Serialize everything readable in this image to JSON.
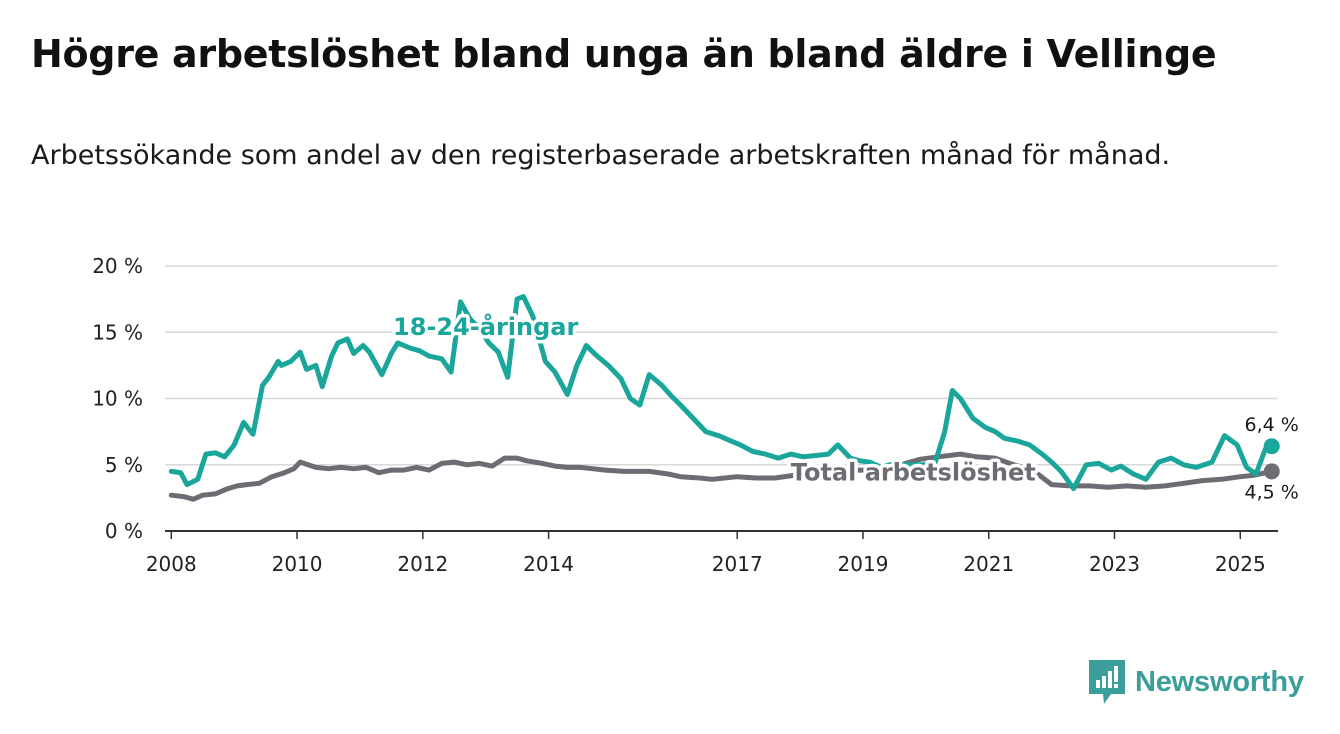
{
  "chart_data": {
    "type": "line",
    "title": "Högre arbetslöshet bland unga än bland äldre i Vellinge",
    "subtitle": "Arbetssökande som andel av den registerbaserade arbetskraften månad för månad.",
    "xlabel": "",
    "ylabel": "",
    "ylim": [
      0,
      20
    ],
    "xlim": [
      2007.9,
      2025.6
    ],
    "y_ticks": [
      0,
      5,
      10,
      15,
      20
    ],
    "y_tick_labels": [
      "0 %",
      "5 %",
      "10 %",
      "15 %",
      "20 %"
    ],
    "x_ticks": [
      2008,
      2010,
      2012,
      2014,
      2017,
      2019,
      2021,
      2023,
      2025
    ],
    "x_tick_labels": [
      "2008",
      "2010",
      "2012",
      "2014",
      "2017",
      "2019",
      "2021",
      "2023",
      "2025"
    ],
    "grid": true,
    "series": [
      {
        "name": "18-24-åringar",
        "color": "#1aa69b",
        "end_label": "6,4 %",
        "x": [
          2008.0,
          2008.15,
          2008.25,
          2008.42,
          2008.55,
          2008.7,
          2008.85,
          2009.0,
          2009.15,
          2009.3,
          2009.45,
          2009.55,
          2009.7,
          2009.75,
          2009.9,
          2010.05,
          2010.15,
          2010.3,
          2010.4,
          2010.55,
          2010.65,
          2010.8,
          2010.9,
          2011.05,
          2011.15,
          2011.35,
          2011.5,
          2011.6,
          2011.8,
          2011.95,
          2012.1,
          2012.3,
          2012.45,
          2012.6,
          2012.75,
          2012.9,
          2013.05,
          2013.2,
          2013.35,
          2013.5,
          2013.6,
          2013.75,
          2013.95,
          2014.1,
          2014.3,
          2014.45,
          2014.6,
          2014.75,
          2014.95,
          2015.15,
          2015.3,
          2015.45,
          2015.6,
          2015.8,
          2015.95,
          2016.1,
          2016.3,
          2016.5,
          2016.7,
          2016.9,
          2017.05,
          2017.25,
          2017.45,
          2017.65,
          2017.85,
          2018.05,
          2018.25,
          2018.45,
          2018.6,
          2018.8,
          2018.95,
          2019.1,
          2019.3,
          2019.5,
          2019.7,
          2019.95,
          2020.15,
          2020.3,
          2020.42,
          2020.55,
          2020.75,
          2020.95,
          2021.1,
          2021.25,
          2021.45,
          2021.65,
          2021.85,
          2022.0,
          2022.15,
          2022.35,
          2022.55,
          2022.75,
          2022.95,
          2023.1,
          2023.3,
          2023.5,
          2023.7,
          2023.9,
          2024.1,
          2024.3,
          2024.55,
          2024.75,
          2024.95,
          2025.1,
          2025.25,
          2025.4,
          2025.5
        ],
        "values": [
          4.5,
          4.4,
          3.5,
          3.9,
          5.8,
          5.9,
          5.6,
          6.5,
          8.2,
          7.3,
          11.0,
          11.6,
          12.8,
          12.5,
          12.8,
          13.5,
          12.2,
          12.5,
          10.9,
          13.2,
          14.2,
          14.5,
          13.4,
          14.0,
          13.5,
          11.8,
          13.4,
          14.2,
          13.8,
          13.6,
          13.2,
          13.0,
          12.0,
          17.3,
          16.0,
          15.3,
          14.2,
          13.5,
          11.6,
          17.5,
          17.7,
          16.2,
          12.8,
          12.0,
          10.3,
          12.5,
          14.0,
          13.3,
          12.5,
          11.5,
          10.0,
          9.5,
          11.8,
          11.0,
          10.2,
          9.5,
          8.5,
          7.5,
          7.2,
          6.8,
          6.5,
          6.0,
          5.8,
          5.5,
          5.8,
          5.6,
          5.7,
          5.8,
          6.5,
          5.5,
          5.3,
          5.2,
          4.8,
          5.1,
          5.0,
          5.0,
          5.2,
          7.5,
          10.6,
          10.0,
          8.5,
          7.8,
          7.5,
          7.0,
          6.8,
          6.5,
          5.8,
          5.2,
          4.5,
          3.2,
          5.0,
          5.1,
          4.6,
          4.9,
          4.3,
          3.9,
          5.2,
          5.5,
          5.0,
          4.8,
          5.2,
          7.2,
          6.5,
          4.8,
          4.3,
          6.2,
          6.4
        ]
      },
      {
        "name": "Total arbetslöshet",
        "color": "#6d6c73",
        "end_label": "4,5 %",
        "x": [
          2008.0,
          2008.2,
          2008.35,
          2008.5,
          2008.7,
          2008.9,
          2009.05,
          2009.2,
          2009.4,
          2009.6,
          2009.8,
          2009.95,
          2010.05,
          2010.3,
          2010.5,
          2010.7,
          2010.9,
          2011.1,
          2011.3,
          2011.5,
          2011.7,
          2011.9,
          2012.1,
          2012.3,
          2012.5,
          2012.7,
          2012.9,
          2013.1,
          2013.3,
          2013.5,
          2013.65,
          2013.9,
          2014.1,
          2014.3,
          2014.5,
          2014.7,
          2014.9,
          2015.2,
          2015.4,
          2015.6,
          2015.9,
          2016.1,
          2016.4,
          2016.6,
          2016.8,
          2017.0,
          2017.3,
          2017.6,
          2017.9,
          2018.2,
          2018.5,
          2018.8,
          2019.0,
          2019.3,
          2019.6,
          2019.9,
          2020.2,
          2020.55,
          2020.8,
          2021.1,
          2021.4,
          2021.7,
          2022.0,
          2022.3,
          2022.6,
          2022.9,
          2023.2,
          2023.5,
          2023.8,
          2024.1,
          2024.4,
          2024.7,
          2025.0,
          2025.2,
          2025.5
        ],
        "values": [
          2.7,
          2.6,
          2.4,
          2.7,
          2.8,
          3.2,
          3.4,
          3.5,
          3.6,
          4.1,
          4.4,
          4.7,
          5.2,
          4.8,
          4.7,
          4.8,
          4.7,
          4.8,
          4.4,
          4.6,
          4.6,
          4.8,
          4.6,
          5.1,
          5.2,
          5.0,
          5.1,
          4.9,
          5.5,
          5.5,
          5.3,
          5.1,
          4.9,
          4.8,
          4.8,
          4.7,
          4.6,
          4.5,
          4.5,
          4.5,
          4.3,
          4.1,
          4.0,
          3.9,
          4.0,
          4.1,
          4.0,
          4.0,
          4.2,
          4.4,
          4.5,
          4.6,
          4.6,
          4.8,
          5.0,
          5.4,
          5.6,
          5.8,
          5.6,
          5.5,
          5.0,
          4.6,
          3.5,
          3.4,
          3.4,
          3.3,
          3.4,
          3.3,
          3.4,
          3.6,
          3.8,
          3.9,
          4.1,
          4.2,
          4.5
        ]
      }
    ]
  },
  "branding": {
    "name": "Newsworthy",
    "color": "#3a9e9b"
  }
}
